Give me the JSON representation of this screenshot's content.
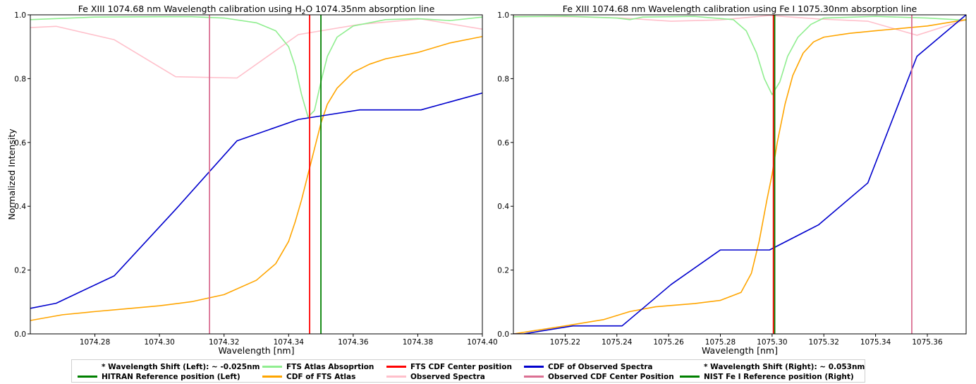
{
  "chart_data": [
    {
      "type": "line",
      "title": "Fe XIII 1074.68 nm Wavelength calibration using H$_2$O 1074.35nm absorption line",
      "title_parts": [
        "Fe XIII 1074.68 nm Wavelength calibration using H",
        "2",
        "O 1074.35nm absorption line"
      ],
      "xlabel": "Wavelength [nm]",
      "ylabel": "Normalized Intensity",
      "xlim": [
        1074.26,
        1074.4
      ],
      "ylim": [
        0.0,
        1.0
      ],
      "xticks": [
        "1074.28",
        "1074.30",
        "1074.32",
        "1074.34",
        "1074.36",
        "1074.38",
        "1074.40"
      ],
      "xtick_values": [
        1074.28,
        1074.3,
        1074.32,
        1074.34,
        1074.36,
        1074.38,
        1074.4
      ],
      "yticks": [
        "0.0",
        "0.2",
        "0.4",
        "0.6",
        "0.8",
        "1.0"
      ],
      "ytick_values": [
        0.0,
        0.2,
        0.4,
        0.6,
        0.8,
        1.0
      ],
      "series": [
        {
          "name": "Observed Spectra",
          "color": "#ffc0cb",
          "x": [
            1074.26,
            1074.268,
            1074.286,
            1074.305,
            1074.324,
            1074.343,
            1074.362,
            1074.381,
            1074.4
          ],
          "y": [
            0.96,
            0.964,
            0.922,
            0.806,
            0.802,
            0.938,
            0.97,
            0.987,
            0.955
          ]
        },
        {
          "name": "FTS Atlas Absoprtion",
          "color": "#90ee90",
          "x": [
            1074.26,
            1074.28,
            1074.3,
            1074.31,
            1074.32,
            1074.33,
            1074.336,
            1074.34,
            1074.342,
            1074.344,
            1074.346,
            1074.348,
            1074.35,
            1074.352,
            1074.355,
            1074.36,
            1074.37,
            1074.38,
            1074.39,
            1074.4
          ],
          "y": [
            0.985,
            0.993,
            0.994,
            0.994,
            0.99,
            0.975,
            0.95,
            0.9,
            0.84,
            0.75,
            0.68,
            0.7,
            0.79,
            0.87,
            0.93,
            0.965,
            0.985,
            0.988,
            0.982,
            0.993
          ]
        },
        {
          "name": "CDF of FTS Atlas",
          "color": "#ffa500",
          "x": [
            1074.26,
            1074.27,
            1074.28,
            1074.29,
            1074.3,
            1074.31,
            1074.32,
            1074.33,
            1074.336,
            1074.34,
            1074.342,
            1074.344,
            1074.346,
            1074.348,
            1074.35,
            1074.352,
            1074.355,
            1074.36,
            1074.365,
            1074.37,
            1074.38,
            1074.39,
            1074.4
          ],
          "y": [
            0.042,
            0.06,
            0.07,
            0.079,
            0.088,
            0.101,
            0.123,
            0.168,
            0.22,
            0.29,
            0.35,
            0.42,
            0.5,
            0.58,
            0.66,
            0.72,
            0.77,
            0.82,
            0.845,
            0.862,
            0.882,
            0.912,
            0.932
          ]
        },
        {
          "name": "CDF of Observed Spectra",
          "color": "#0000cd",
          "x": [
            1074.26,
            1074.268,
            1074.286,
            1074.305,
            1074.324,
            1074.343,
            1074.362,
            1074.381,
            1074.4
          ],
          "y": [
            0.08,
            0.096,
            0.182,
            0.39,
            0.605,
            0.672,
            0.702,
            0.702,
            0.755
          ]
        }
      ],
      "vlines": [
        {
          "name": "Observed CDF Center Position",
          "x": 1074.3155,
          "color": "#db7093"
        },
        {
          "name": "FTS CDF Center position",
          "x": 1074.3465,
          "color": "#ff0000"
        },
        {
          "name": "HITRAN Reference position (Left)",
          "x": 1074.35,
          "color": "#008000"
        }
      ]
    },
    {
      "type": "line",
      "title": "Fe XIII 1074.68 nm Wavelength calibration using Fe I 1075.30nm absorption line",
      "xlabel": "Wavelength [nm]",
      "ylabel": "",
      "xlim": [
        1075.2,
        1075.375
      ],
      "ylim": [
        0.0,
        1.0
      ],
      "xticks": [
        "1075.22",
        "1075.24",
        "1075.26",
        "1075.28",
        "1075.30",
        "1075.32",
        "1075.34",
        "1075.36"
      ],
      "xtick_values": [
        1075.22,
        1075.24,
        1075.26,
        1075.28,
        1075.3,
        1075.32,
        1075.34,
        1075.36
      ],
      "yticks": [
        "0.0",
        "0.2",
        "0.4",
        "0.6",
        "0.8",
        "1.0"
      ],
      "ytick_values": [
        0.0,
        0.2,
        0.4,
        0.6,
        0.8,
        1.0
      ],
      "series": [
        {
          "name": "Observed Spectra",
          "color": "#ffc0cb",
          "x": [
            1075.2,
            1075.223,
            1075.242,
            1075.261,
            1075.28,
            1075.299,
            1075.318,
            1075.337,
            1075.356,
            1075.375
          ],
          "y": [
            0.995,
            0.994,
            0.99,
            0.98,
            0.984,
            0.998,
            0.987,
            0.98,
            0.936,
            0.985
          ]
        },
        {
          "name": "FTS Atlas Absoprtion",
          "color": "#90ee90",
          "x": [
            1075.2,
            1075.22,
            1075.24,
            1075.245,
            1075.25,
            1075.27,
            1075.285,
            1075.29,
            1075.294,
            1075.297,
            1075.3,
            1075.303,
            1075.306,
            1075.31,
            1075.315,
            1075.32,
            1075.34,
            1075.36,
            1075.375
          ],
          "y": [
            0.994,
            0.996,
            0.99,
            0.985,
            0.993,
            0.995,
            0.985,
            0.95,
            0.88,
            0.8,
            0.75,
            0.79,
            0.87,
            0.93,
            0.97,
            0.99,
            0.995,
            0.99,
            0.983
          ]
        },
        {
          "name": "CDF of FTS Atlas",
          "color": "#ffa500",
          "x": [
            1075.2,
            1075.22,
            1075.235,
            1075.245,
            1075.255,
            1075.27,
            1075.28,
            1075.288,
            1075.292,
            1075.295,
            1075.298,
            1075.3,
            1075.302,
            1075.305,
            1075.308,
            1075.312,
            1075.316,
            1075.32,
            1075.33,
            1075.34,
            1075.36,
            1075.375
          ],
          "y": [
            0.0,
            0.025,
            0.045,
            0.07,
            0.085,
            0.095,
            0.105,
            0.13,
            0.19,
            0.29,
            0.42,
            0.5,
            0.6,
            0.72,
            0.81,
            0.88,
            0.915,
            0.93,
            0.942,
            0.95,
            0.965,
            0.985
          ]
        },
        {
          "name": "CDF of Observed Spectra",
          "color": "#0000cd",
          "x": [
            1075.2,
            1075.204,
            1075.223,
            1075.242,
            1075.261,
            1075.28,
            1075.299,
            1075.318,
            1075.337,
            1075.356,
            1075.375
          ],
          "y": [
            0.0,
            0.0,
            0.025,
            0.025,
            0.155,
            0.263,
            0.263,
            0.342,
            0.473,
            0.87,
            1.0
          ]
        }
      ],
      "vlines": [
        {
          "name": "HITRAN Reference position (Left)",
          "x": 1075.3005,
          "color": "#ff0000"
        },
        {
          "name": "NIST Fe I Reference position (Right)",
          "x": 1075.301,
          "color": "#008000"
        },
        {
          "name": "Observed CDF Center Position",
          "x": 1075.354,
          "color": "#db7093"
        }
      ]
    }
  ],
  "legend": {
    "placement": "bottom-center",
    "items": [
      {
        "label": "* Wavelength Shift (Left): ~ -0.025nm",
        "color": ""
      },
      {
        "label": "HITRAN Reference position (Left)",
        "color": "#008000"
      },
      {
        "label": "FTS Atlas Absoprtion",
        "color": "#90ee90"
      },
      {
        "label": "CDF of FTS Atlas",
        "color": "#ffa500"
      },
      {
        "label": "FTS CDF Center position",
        "color": "#ff0000"
      },
      {
        "label": "Observed Spectra",
        "color": "#ffc0cb"
      },
      {
        "label": "CDF of Observed Spectra",
        "color": "#0000cd"
      },
      {
        "label": "Observed CDF Center Position",
        "color": "#db7093"
      },
      {
        "label": "* Wavelength Shift (Right): ~ 0.053nm",
        "color": ""
      },
      {
        "label": "NIST Fe I Reference position (Right)",
        "color": "#008000"
      }
    ]
  }
}
